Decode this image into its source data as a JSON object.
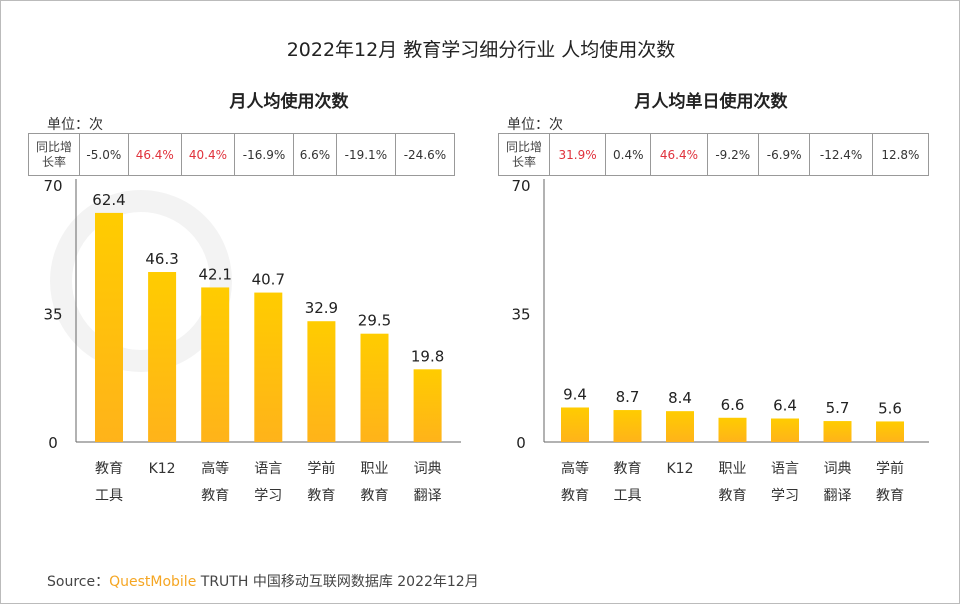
{
  "title": "2022年12月 教育学习细分行业 人均使用次数",
  "watermark": "QUEST MOBILE",
  "source": {
    "prefix": "Source：",
    "brand": "QuestMobile",
    "rest": " TRUTH 中国移动互联网数据库 2022年12月"
  },
  "colors": {
    "bar_top": "#ffcc00",
    "bar_bottom": "#ffb31a",
    "positive_yoy": "#e0323c"
  },
  "chart_data": [
    {
      "type": "bar",
      "title": "月人均使用次数",
      "unit": "单位：次",
      "yoy_header": [
        "同比增",
        "长率"
      ],
      "categories": [
        [
          "教育",
          "工具"
        ],
        [
          "K12"
        ],
        [
          "高等",
          "教育"
        ],
        [
          "语言",
          "学习"
        ],
        [
          "学前",
          "教育"
        ],
        [
          "职业",
          "教育"
        ],
        [
          "词典",
          "翻译"
        ]
      ],
      "values": [
        62.4,
        46.3,
        42.1,
        40.7,
        32.9,
        29.5,
        19.8
      ],
      "yoy": [
        "-5.0%",
        "46.4%",
        "40.4%",
        "-16.9%",
        "6.6%",
        "-19.1%",
        "-24.6%"
      ],
      "yoy_red": [
        false,
        true,
        true,
        false,
        false,
        false,
        false
      ],
      "yticks": [
        0,
        35,
        70
      ],
      "ylim": [
        0,
        70
      ]
    },
    {
      "type": "bar",
      "title": "月人均单日使用次数",
      "unit": "单位：次",
      "yoy_header": [
        "同比增",
        "长率"
      ],
      "categories": [
        [
          "高等",
          "教育"
        ],
        [
          "教育",
          "工具"
        ],
        [
          "K12"
        ],
        [
          "职业",
          "教育"
        ],
        [
          "语言",
          "学习"
        ],
        [
          "词典",
          "翻译"
        ],
        [
          "学前",
          "教育"
        ]
      ],
      "values": [
        9.4,
        8.7,
        8.4,
        6.6,
        6.4,
        5.7,
        5.6
      ],
      "yoy": [
        "31.9%",
        "0.4%",
        "46.4%",
        "-9.2%",
        "-6.9%",
        "-12.4%",
        "12.8%"
      ],
      "yoy_red": [
        true,
        false,
        true,
        false,
        false,
        false,
        false
      ],
      "yticks": [
        0,
        35,
        70
      ],
      "ylim": [
        0,
        70
      ]
    }
  ]
}
